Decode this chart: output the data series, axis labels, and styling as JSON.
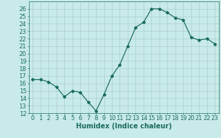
{
  "x": [
    0,
    1,
    2,
    3,
    4,
    5,
    6,
    7,
    8,
    9,
    10,
    11,
    12,
    13,
    14,
    15,
    16,
    17,
    18,
    19,
    20,
    21,
    22,
    23
  ],
  "y": [
    16.5,
    16.5,
    16.2,
    15.5,
    14.2,
    15.0,
    14.8,
    13.5,
    12.3,
    14.5,
    17.0,
    18.5,
    21.0,
    23.5,
    24.2,
    26.0,
    26.0,
    25.5,
    24.8,
    24.5,
    22.2,
    21.8,
    22.0,
    21.3
  ],
  "xlabel": "Humidex (Indice chaleur)",
  "ylim": [
    12,
    27
  ],
  "xlim": [
    -0.5,
    23.5
  ],
  "yticks": [
    12,
    13,
    14,
    15,
    16,
    17,
    18,
    19,
    20,
    21,
    22,
    23,
    24,
    25,
    26
  ],
  "xticks": [
    0,
    1,
    2,
    3,
    4,
    5,
    6,
    7,
    8,
    9,
    10,
    11,
    12,
    13,
    14,
    15,
    16,
    17,
    18,
    19,
    20,
    21,
    22,
    23
  ],
  "line_color": "#1a6b5e",
  "bg_color": "#c8eae8",
  "grid_color": "#a8d0ce",
  "axis_fontsize": 7,
  "tick_fontsize": 6
}
